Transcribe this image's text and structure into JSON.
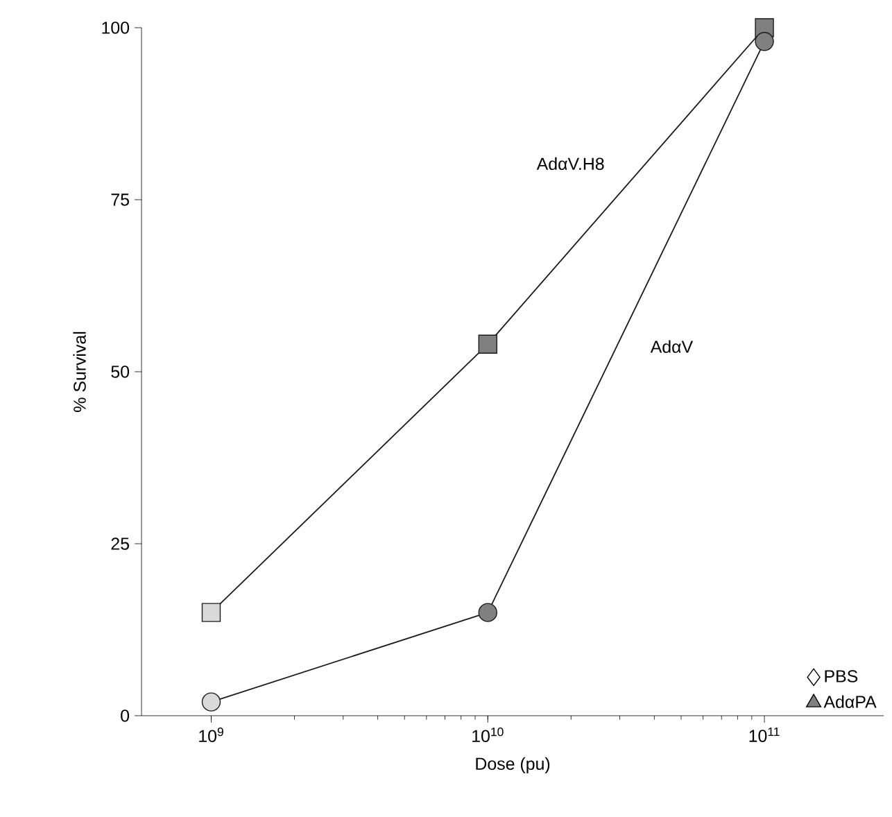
{
  "chart_data": {
    "type": "line",
    "xlabel": "Dose (pu)",
    "ylabel": "% Survival",
    "log": "x",
    "x": [
      1000000000,
      10000000000,
      100000000000
    ],
    "xlim": [
      560000000,
      270000000000
    ],
    "xticks": [
      {
        "value": 1000000000,
        "label": "10$^{9}$"
      },
      {
        "value": 10000000000,
        "label": "10$^{10}$"
      },
      {
        "value": 100000000000,
        "label": "10$^{11}$"
      }
    ],
    "ylim": [
      0,
      100
    ],
    "yticks": [
      0,
      25,
      50,
      75,
      100
    ],
    "legend": "bottom right",
    "series": [
      {
        "name": "AdαV.H8",
        "color": "#1a1a1a",
        "marker": "square",
        "colors": [
          "#d9d9d9",
          "#808080",
          "#808080"
        ],
        "values": [
          15,
          54,
          100
        ]
      },
      {
        "name": "AdαV",
        "color": "#1a1a1a",
        "marker": "circle",
        "colors": [
          "#d9d9d9",
          "#808080",
          "#808080"
        ],
        "values": [
          2,
          15,
          98
        ]
      },
      {
        "name": "PBS",
        "type": "scatter",
        "marker": "diamond",
        "color": "#ffffff",
        "values": [
          null,
          null,
          null
        ]
      },
      {
        "name": "AdαPA",
        "type": "scatter",
        "marker": "triangle",
        "color": "#808080",
        "values": [
          null,
          null,
          null
        ]
      }
    ]
  }
}
